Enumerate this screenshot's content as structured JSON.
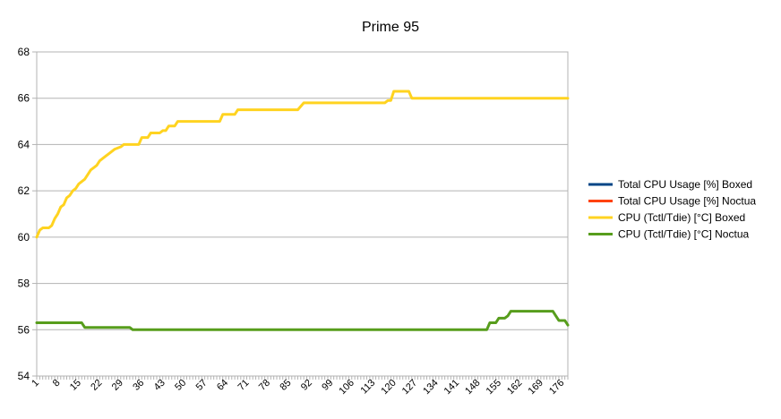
{
  "chart_data": {
    "type": "line",
    "title": "Prime 95",
    "xlabel": "",
    "ylabel": "",
    "x_start": 1,
    "x_end": 178,
    "x_tick_labels": [
      "1",
      "8",
      "15",
      "22",
      "29",
      "36",
      "43",
      "50",
      "57",
      "64",
      "71",
      "78",
      "85",
      "92",
      "99",
      "106",
      "113",
      "120",
      "127",
      "134",
      "141",
      "148",
      "155",
      "162",
      "169",
      "176"
    ],
    "ylim": [
      54,
      68
    ],
    "y_ticks": [
      54,
      56,
      58,
      60,
      62,
      64,
      66,
      68
    ],
    "grid": true,
    "legend_position": "right",
    "series": [
      {
        "name": "Total CPU Usage [%] Boxed",
        "color": "#004586",
        "points": []
      },
      {
        "name": "Total CPU Usage [%] Noctua",
        "color": "#ff420e",
        "points": []
      },
      {
        "name": "CPU (Tctl/Tdie) [°C] Boxed",
        "color": "#ffd320",
        "points": [
          [
            1,
            60.0
          ],
          [
            2,
            60.3
          ],
          [
            3,
            60.4
          ],
          [
            5,
            60.4
          ],
          [
            6,
            60.5
          ],
          [
            7,
            60.8
          ],
          [
            8,
            61.0
          ],
          [
            9,
            61.3
          ],
          [
            10,
            61.4
          ],
          [
            11,
            61.7
          ],
          [
            12,
            61.8
          ],
          [
            13,
            62.0
          ],
          [
            14,
            62.1
          ],
          [
            15,
            62.3
          ],
          [
            16,
            62.4
          ],
          [
            17,
            62.5
          ],
          [
            18,
            62.7
          ],
          [
            19,
            62.9
          ],
          [
            20,
            63.0
          ],
          [
            21,
            63.1
          ],
          [
            22,
            63.3
          ],
          [
            23,
            63.4
          ],
          [
            24,
            63.5
          ],
          [
            25,
            63.6
          ],
          [
            26,
            63.7
          ],
          [
            27,
            63.8
          ],
          [
            29,
            63.9
          ],
          [
            30,
            64.0
          ],
          [
            35,
            64.0
          ],
          [
            36,
            64.3
          ],
          [
            38,
            64.3
          ],
          [
            39,
            64.5
          ],
          [
            42,
            64.5
          ],
          [
            43,
            64.6
          ],
          [
            44,
            64.6
          ],
          [
            45,
            64.8
          ],
          [
            47,
            64.8
          ],
          [
            48,
            65.0
          ],
          [
            62,
            65.0
          ],
          [
            63,
            65.3
          ],
          [
            67,
            65.3
          ],
          [
            68,
            65.5
          ],
          [
            88,
            65.5
          ],
          [
            90,
            65.8
          ],
          [
            117,
            65.8
          ],
          [
            118,
            65.9
          ],
          [
            119,
            65.9
          ],
          [
            120,
            66.3
          ],
          [
            125,
            66.3
          ],
          [
            126,
            66.0
          ],
          [
            178,
            66.0
          ]
        ]
      },
      {
        "name": "CPU (Tctl/Tdie) [°C] Noctua",
        "color": "#579d1c",
        "points": [
          [
            1,
            56.3
          ],
          [
            16,
            56.3
          ],
          [
            17,
            56.1
          ],
          [
            32,
            56.1
          ],
          [
            33,
            56.0
          ],
          [
            151,
            56.0
          ],
          [
            152,
            56.3
          ],
          [
            154,
            56.3
          ],
          [
            155,
            56.5
          ],
          [
            157,
            56.5
          ],
          [
            158,
            56.6
          ],
          [
            159,
            56.8
          ],
          [
            173,
            56.8
          ],
          [
            174,
            56.6
          ],
          [
            175,
            56.4
          ],
          [
            177,
            56.4
          ],
          [
            178,
            56.2
          ]
        ]
      }
    ]
  }
}
